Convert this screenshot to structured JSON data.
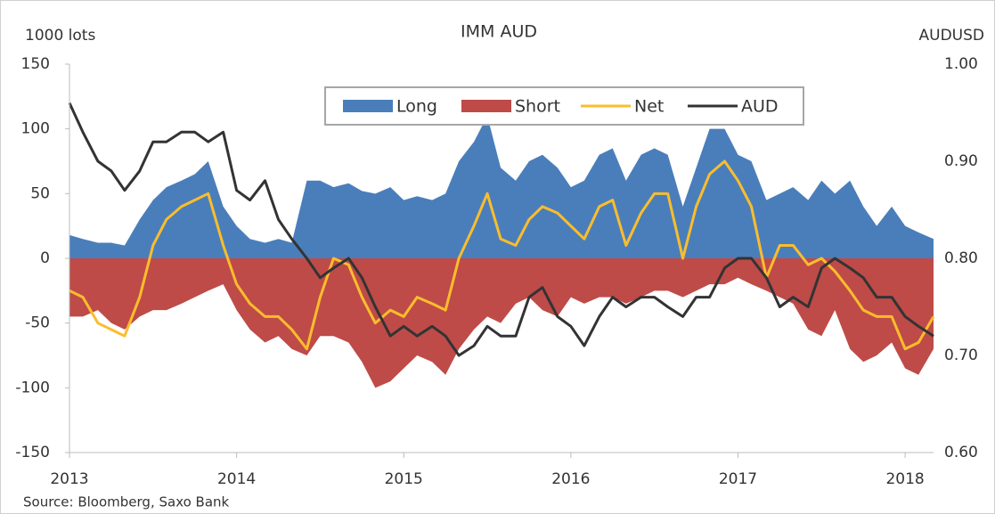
{
  "chart_data": {
    "type": "area_line",
    "title": "IMM AUD",
    "y_label": "1000 lots",
    "y2_label": "AUDUSD",
    "source": "Source: Bloomberg,  Saxo Bank",
    "x": [
      2013,
      2013.08,
      2013.17,
      2013.25,
      2013.33,
      2013.42,
      2013.5,
      2013.58,
      2013.67,
      2013.75,
      2013.83,
      2013.92,
      2014,
      2014.08,
      2014.17,
      2014.25,
      2014.33,
      2014.42,
      2014.5,
      2014.58,
      2014.67,
      2014.75,
      2014.83,
      2014.92,
      2015,
      2015.08,
      2015.17,
      2015.25,
      2015.33,
      2015.42,
      2015.5,
      2015.58,
      2015.67,
      2015.75,
      2015.83,
      2015.92,
      2016,
      2016.08,
      2016.17,
      2016.25,
      2016.33,
      2016.42,
      2016.5,
      2016.58,
      2016.67,
      2016.75,
      2016.83,
      2016.92,
      2017,
      2017.08,
      2017.17,
      2017.25,
      2017.33,
      2017.42,
      2017.5,
      2017.58,
      2017.67,
      2017.75,
      2017.83,
      2017.92,
      2018,
      2018.08,
      2018.17
    ],
    "series": [
      {
        "name": "Long",
        "color": "#4a7ebb",
        "kind": "area",
        "values": [
          18,
          15,
          12,
          12,
          10,
          30,
          45,
          55,
          60,
          65,
          75,
          40,
          25,
          15,
          12,
          15,
          12,
          60,
          60,
          55,
          58,
          52,
          50,
          55,
          45,
          48,
          45,
          50,
          75,
          90,
          110,
          70,
          60,
          75,
          80,
          70,
          55,
          60,
          80,
          85,
          60,
          80,
          85,
          80,
          40,
          70,
          100,
          100,
          80,
          75,
          45,
          50,
          55,
          45,
          60,
          50,
          60,
          40,
          25,
          40,
          25,
          20,
          15
        ]
      },
      {
        "name": "Short",
        "color": "#be4b48",
        "kind": "area",
        "values": [
          -45,
          -45,
          -40,
          -50,
          -55,
          -45,
          -40,
          -40,
          -35,
          -30,
          -25,
          -20,
          -40,
          -55,
          -65,
          -60,
          -70,
          -75,
          -60,
          -60,
          -65,
          -80,
          -100,
          -95,
          -85,
          -75,
          -80,
          -90,
          -70,
          -55,
          -45,
          -50,
          -35,
          -30,
          -40,
          -45,
          -30,
          -35,
          -30,
          -30,
          -35,
          -30,
          -25,
          -25,
          -30,
          -25,
          -20,
          -20,
          -15,
          -20,
          -25,
          -30,
          -35,
          -55,
          -60,
          -40,
          -70,
          -80,
          -75,
          -65,
          -85,
          -90,
          -70
        ]
      },
      {
        "name": "Net",
        "color": "#fbbd2c",
        "kind": "line",
        "values": [
          -25,
          -30,
          -50,
          -55,
          -60,
          -30,
          10,
          30,
          40,
          45,
          50,
          10,
          -20,
          -35,
          -45,
          -45,
          -55,
          -70,
          -30,
          0,
          -5,
          -30,
          -50,
          -40,
          -45,
          -30,
          -35,
          -40,
          0,
          25,
          50,
          15,
          10,
          30,
          40,
          35,
          25,
          15,
          40,
          45,
          10,
          35,
          50,
          50,
          0,
          40,
          65,
          75,
          60,
          40,
          -15,
          10,
          10,
          -5,
          0,
          -10,
          -25,
          -40,
          -45,
          -45,
          -70,
          -65,
          -45
        ]
      },
      {
        "name": "AUD",
        "color": "#333333",
        "kind": "line",
        "axis": "y2",
        "values": [
          0.96,
          0.93,
          0.9,
          0.89,
          0.87,
          0.89,
          0.92,
          0.92,
          0.93,
          0.93,
          0.92,
          0.93,
          0.87,
          0.86,
          0.88,
          0.84,
          0.82,
          0.8,
          0.78,
          0.79,
          0.8,
          0.78,
          0.75,
          0.72,
          0.73,
          0.72,
          0.73,
          0.72,
          0.7,
          0.71,
          0.73,
          0.72,
          0.72,
          0.76,
          0.77,
          0.74,
          0.73,
          0.71,
          0.74,
          0.76,
          0.75,
          0.76,
          0.76,
          0.75,
          0.74,
          0.76,
          0.76,
          0.79,
          0.8,
          0.8,
          0.78,
          0.75,
          0.76,
          0.75,
          0.79,
          0.8,
          0.79,
          0.78,
          0.76,
          0.76,
          0.74,
          0.73,
          0.72
        ]
      }
    ],
    "xlim": [
      2013,
      2018.17
    ],
    "xticks": [
      2013,
      2014,
      2015,
      2016,
      2017,
      2018
    ],
    "ylim": [
      -150,
      150
    ],
    "yticks": [
      -150,
      -100,
      -50,
      0,
      50,
      100,
      150
    ],
    "y2lim": [
      0.6,
      1.0
    ],
    "y2ticks": [
      {
        "value": 0.6,
        "label": "0.60"
      },
      {
        "value": 0.7,
        "label": "0.70"
      },
      {
        "value": 0.8,
        "label": "0.80"
      },
      {
        "value": 0.9,
        "label": "0.90"
      },
      {
        "value": 1.0,
        "label": "1.00"
      }
    ],
    "legend": "top"
  }
}
